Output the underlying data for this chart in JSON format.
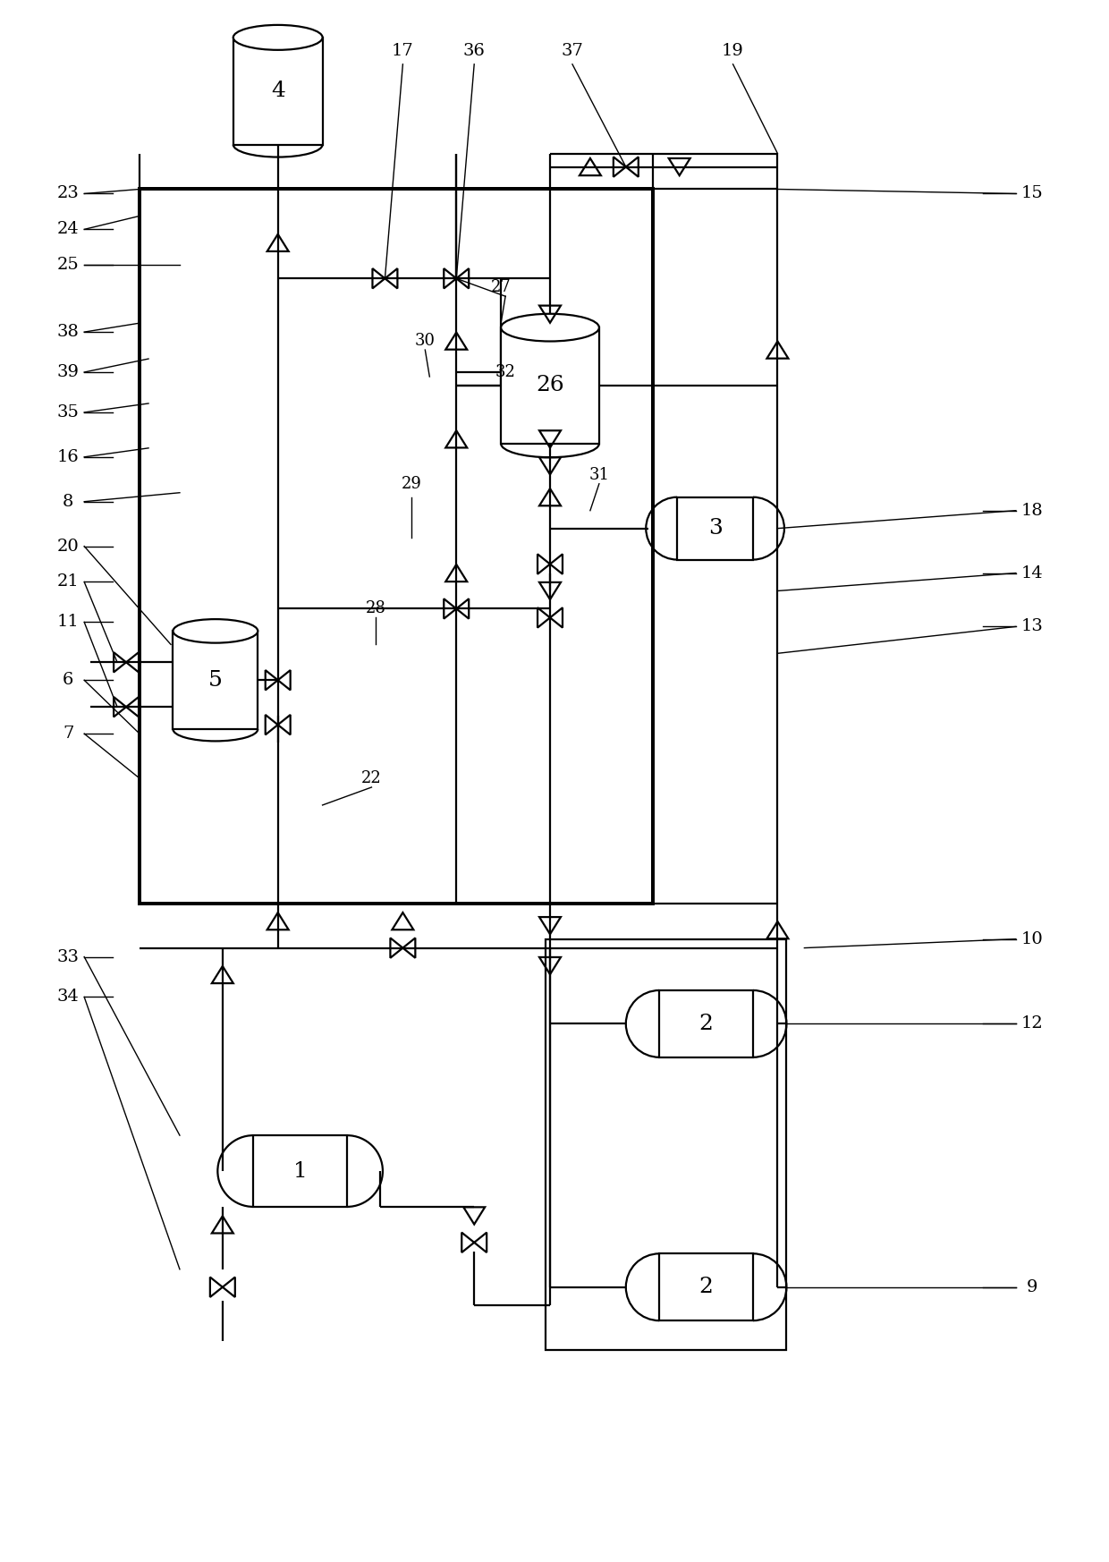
{
  "bg": "#ffffff",
  "lc": "#000000",
  "lw": 1.6,
  "fig_w": 12.4,
  "fig_h": 17.46,
  "dpi": 100
}
